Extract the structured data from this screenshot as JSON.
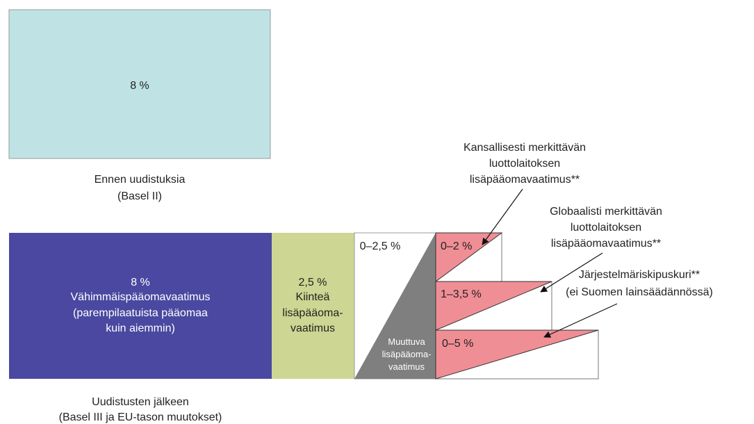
{
  "before": {
    "box_label": "8 %",
    "caption_line1": "Ennen uudistuksia",
    "caption_line2": "(Basel II)",
    "color": "#bfe3e4"
  },
  "after": {
    "caption_line1": "Uudistusten jälkeen",
    "caption_line2": "(Basel III ja EU-tason muutokset)",
    "minimum": {
      "lines": [
        "8 %",
        "Vähimmäispääomavaatimus",
        "(parempilaatuista pääomaa",
        "kuin aiemmin)"
      ],
      "color": "#4a48a0"
    },
    "fixed": {
      "lines": [
        "2,5 %",
        "Kiinteä",
        "lisäpääoma-",
        "vaatimus"
      ],
      "color": "#cdd692"
    },
    "variable": {
      "top_label": "0–2,5 %",
      "lines": [
        "Muuttuva",
        "lisäpääoma-",
        "vaatimus"
      ],
      "color": "#7f7f7f"
    },
    "buffers": [
      {
        "range": "0–2 %",
        "annotation": [
          "Kansallisesti merkittävän",
          "luottolaitoksen",
          "lisäpääomavaatimus**"
        ]
      },
      {
        "range": "1–3,5 %",
        "annotation": [
          "Globaalisti merkittävän",
          "luottolaitoksen",
          "lisäpääomavaatimus**"
        ]
      },
      {
        "range": "0–5 %",
        "annotation": [
          "Järjestelmäriskipuskuri**",
          "(ei Suomen lainsäädännössä)"
        ]
      }
    ],
    "buffer_color": "#f08e95"
  }
}
